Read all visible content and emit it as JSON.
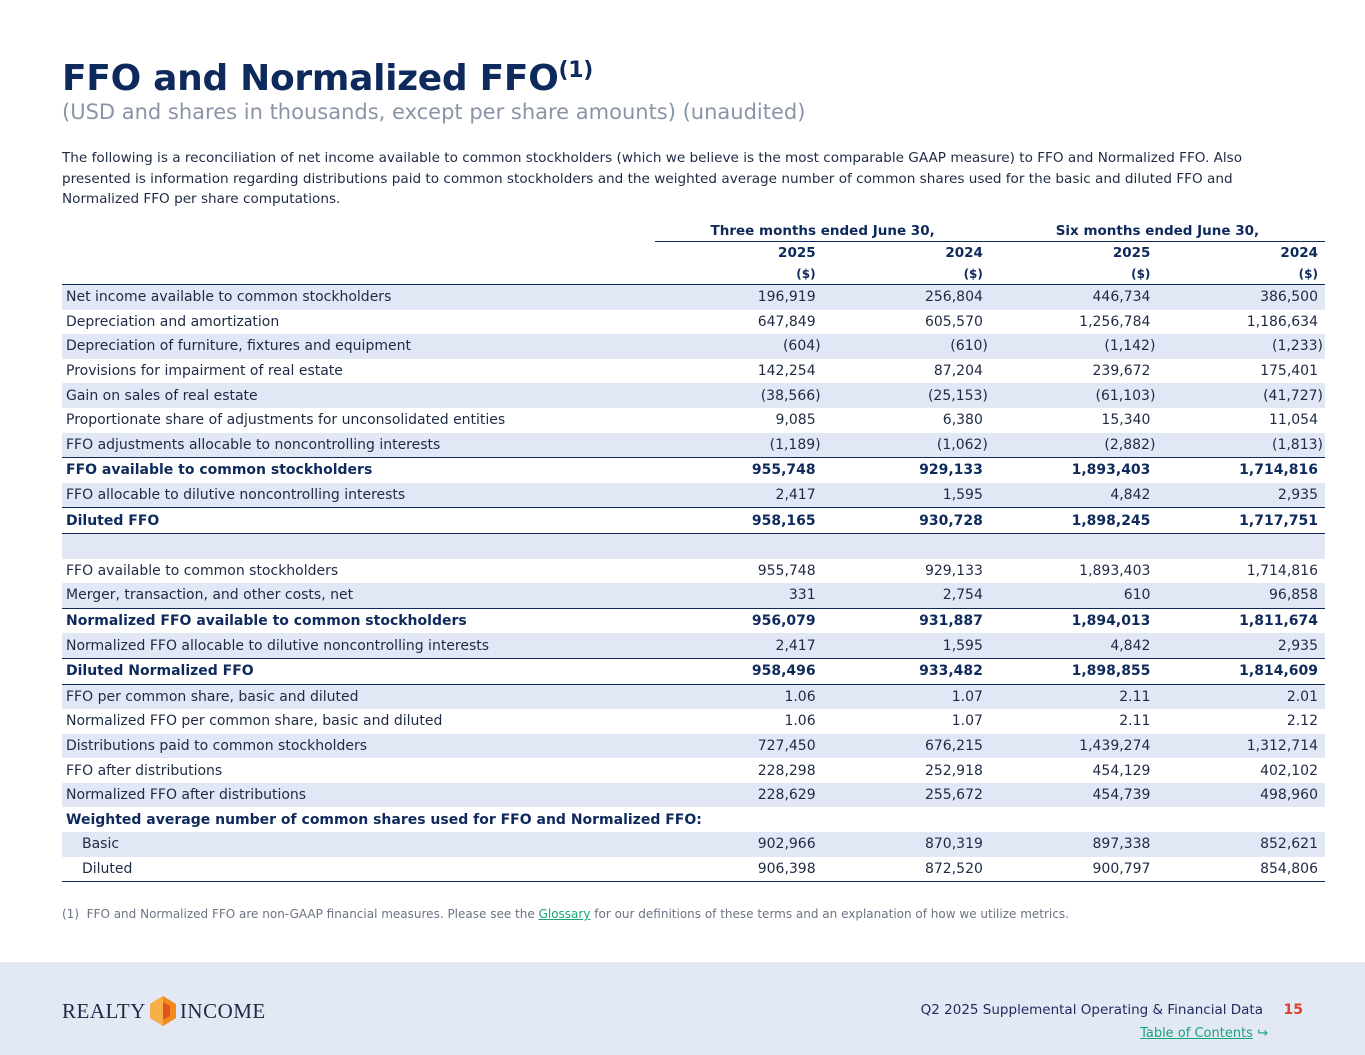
{
  "header": {
    "title": "FFO and Normalized FFO",
    "title_note": "(1)",
    "subtitle": "(USD and shares in thousands, except per share amounts) (unaudited)"
  },
  "intro": "The following is a reconciliation of net income available to common stockholders (which we believe is the most comparable GAAP measure) to FFO and Normalized FFO. Also presented is information regarding distributions paid to common stockholders and the weighted average number of common shares used for the basic and diluted FFO and Normalized FFO per share computations.",
  "table": {
    "group_headers": [
      "Three months ended June 30,",
      "Six months ended June 30,"
    ],
    "years": [
      "2025",
      "2024",
      "2025",
      "2024"
    ],
    "units": [
      "($)",
      "($)",
      "($)",
      "($)"
    ],
    "sections": [
      {
        "rows": [
          {
            "cells": [
              "Net income available to common stockholders",
              "196,919",
              "256,804",
              "446,734",
              "386,500"
            ]
          },
          {
            "cells": [
              "Depreciation and amortization",
              "647,849",
              "605,570",
              "1,256,784",
              "1,186,634"
            ]
          },
          {
            "cells": [
              "Depreciation of furniture, fixtures and equipment",
              "(604)",
              "(610)",
              "(1,142)",
              "(1,233)"
            ]
          },
          {
            "cells": [
              "Provisions for impairment of real estate",
              "142,254",
              "87,204",
              "239,672",
              "175,401"
            ]
          },
          {
            "cells": [
              "Gain on sales of real estate",
              "(38,566)",
              "(25,153)",
              "(61,103)",
              "(41,727)"
            ]
          },
          {
            "cells": [
              "Proportionate share of adjustments for unconsolidated entities",
              "9,085",
              "6,380",
              "15,340",
              "11,054"
            ]
          },
          {
            "cells": [
              "FFO adjustments allocable to noncontrolling interests",
              "(1,189)",
              "(1,062)",
              "(2,882)",
              "(1,813)"
            ]
          },
          {
            "cells": [
              "FFO available to common stockholders",
              "955,748",
              "929,133",
              "1,893,403",
              "1,714,816"
            ],
            "bold": true,
            "rule_above": true
          },
          {
            "cells": [
              "FFO allocable to dilutive noncontrolling interests",
              "2,417",
              "1,595",
              "4,842",
              "2,935"
            ]
          },
          {
            "cells": [
              "Diluted FFO",
              "958,165",
              "930,728",
              "1,898,245",
              "1,717,751"
            ],
            "bold": true,
            "rule_above": true,
            "rule_below": true
          }
        ]
      },
      {
        "rows": [
          {
            "cells": [
              "FFO available to common stockholders",
              "955,748",
              "929,133",
              "1,893,403",
              "1,714,816"
            ]
          },
          {
            "cells": [
              "Merger, transaction, and other costs, net",
              "331",
              "2,754",
              "610",
              "96,858"
            ]
          },
          {
            "cells": [
              "Normalized FFO available to common stockholders",
              "956,079",
              "931,887",
              "1,894,013",
              "1,811,674"
            ],
            "bold": true,
            "rule_above": true
          },
          {
            "cells": [
              "Normalized FFO allocable to dilutive noncontrolling interests",
              "2,417",
              "1,595",
              "4,842",
              "2,935"
            ]
          },
          {
            "cells": [
              "Diluted Normalized FFO",
              "958,496",
              "933,482",
              "1,898,855",
              "1,814,609"
            ],
            "bold": true,
            "rule_above": true,
            "rule_below": true
          },
          {
            "cells": [
              "FFO per common share, basic and diluted",
              "1.06",
              "1.07",
              "2.11",
              "2.01"
            ]
          },
          {
            "cells": [
              "Normalized FFO per common share, basic and diluted",
              "1.06",
              "1.07",
              "2.11",
              "2.12"
            ]
          },
          {
            "cells": [
              "Distributions paid to common stockholders",
              "727,450",
              "676,215",
              "1,439,274",
              "1,312,714"
            ]
          },
          {
            "cells": [
              "FFO after distributions",
              "228,298",
              "252,918",
              "454,129",
              "402,102"
            ]
          },
          {
            "cells": [
              "Normalized FFO after distributions",
              "228,629",
              "255,672",
              "454,739",
              "498,960"
            ]
          },
          {
            "cells": [
              "Weighted average number of common shares used for FFO and Normalized FFO:"
            ],
            "bold": true
          },
          {
            "cells": [
              "Basic",
              "902,966",
              "870,319",
              "897,338",
              "852,621"
            ],
            "indent": true
          },
          {
            "cells": [
              "Diluted",
              "906,398",
              "872,520",
              "900,797",
              "854,806"
            ],
            "indent": true
          }
        ]
      }
    ]
  },
  "footnote": {
    "marker": "(1)",
    "before": "FFO and Normalized FFO are non-GAAP financial measures. Please see the",
    "link": "Glossary",
    "after": "for our definitions of these terms and an explanation of how we utilize metrics."
  },
  "footer": {
    "logo_left": "REALTY",
    "logo_right": "INCOME",
    "report": "Q2 2025 Supplemental Operating & Financial Data",
    "page": "15",
    "toc": "Table of Contents"
  }
}
